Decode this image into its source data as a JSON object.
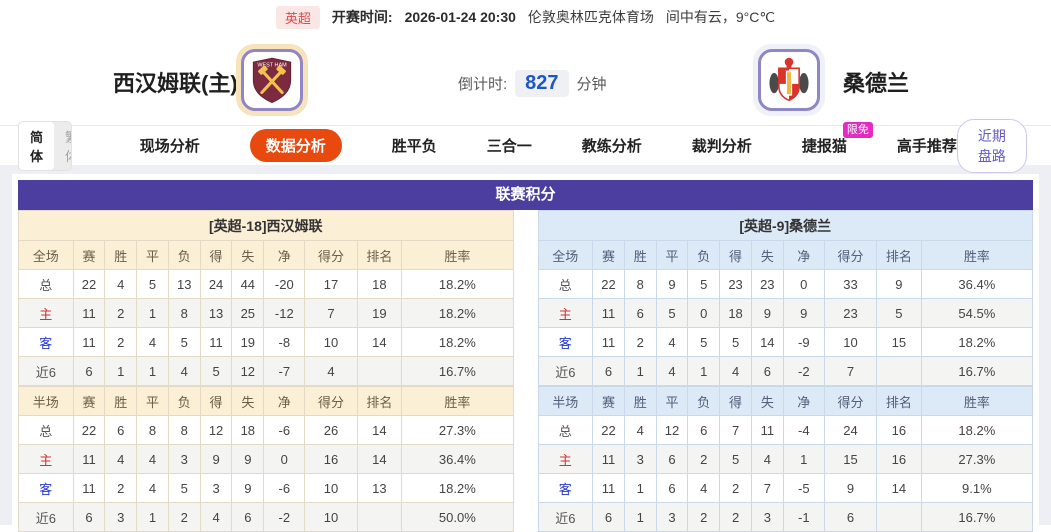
{
  "topbar": {
    "league_badge": "英超",
    "kickoff_label": "开赛时间:",
    "kickoff_time": "2026-01-24 20:30",
    "venue": "伦敦奥林匹克体育场",
    "weather": "间中有云，9°C℃"
  },
  "header": {
    "home_name": "西汉姆联(主)",
    "away_name": "桑德兰",
    "countdown_label": "倒计时:",
    "countdown_value": "827",
    "countdown_unit": "分钟"
  },
  "nav": {
    "lang_simplified": "简体",
    "lang_traditional": "繁体",
    "tabs": [
      {
        "label": "现场分析",
        "active": false
      },
      {
        "label": "数据分析",
        "active": true
      },
      {
        "label": "胜平负",
        "active": false
      },
      {
        "label": "三合一",
        "active": false
      },
      {
        "label": "教练分析",
        "active": false
      },
      {
        "label": "裁判分析",
        "active": false
      },
      {
        "label": "捷报猫",
        "active": false,
        "badge": "限免"
      },
      {
        "label": "高手推荐",
        "active": false
      }
    ],
    "right_button": "近期盘路"
  },
  "section": {
    "title": "联赛积分",
    "home": {
      "team_header": "[英超-18]西汉姆联",
      "full": {
        "columns": [
          "全场",
          "赛",
          "胜",
          "平",
          "负",
          "得",
          "失",
          "净",
          "得分",
          "排名",
          "胜率"
        ],
        "rows": [
          [
            "总",
            "22",
            "4",
            "5",
            "13",
            "24",
            "44",
            "-20",
            "17",
            "18",
            "18.2%"
          ],
          [
            "主",
            "11",
            "2",
            "1",
            "8",
            "13",
            "25",
            "-12",
            "7",
            "19",
            "18.2%"
          ],
          [
            "客",
            "11",
            "2",
            "4",
            "5",
            "11",
            "19",
            "-8",
            "10",
            "14",
            "18.2%"
          ],
          [
            "近6",
            "6",
            "1",
            "1",
            "4",
            "5",
            "12",
            "-7",
            "4",
            "",
            "16.7%"
          ]
        ]
      },
      "half": {
        "columns": [
          "半场",
          "赛",
          "胜",
          "平",
          "负",
          "得",
          "失",
          "净",
          "得分",
          "排名",
          "胜率"
        ],
        "rows": [
          [
            "总",
            "22",
            "6",
            "8",
            "8",
            "12",
            "18",
            "-6",
            "26",
            "14",
            "27.3%"
          ],
          [
            "主",
            "11",
            "4",
            "4",
            "3",
            "9",
            "9",
            "0",
            "16",
            "14",
            "36.4%"
          ],
          [
            "客",
            "11",
            "2",
            "4",
            "5",
            "3",
            "9",
            "-6",
            "10",
            "13",
            "18.2%"
          ],
          [
            "近6",
            "6",
            "3",
            "1",
            "2",
            "4",
            "6",
            "-2",
            "10",
            "",
            "50.0%"
          ]
        ]
      }
    },
    "away": {
      "team_header": "[英超-9]桑德兰",
      "full": {
        "columns": [
          "全场",
          "赛",
          "胜",
          "平",
          "负",
          "得",
          "失",
          "净",
          "得分",
          "排名",
          "胜率"
        ],
        "rows": [
          [
            "总",
            "22",
            "8",
            "9",
            "5",
            "23",
            "23",
            "0",
            "33",
            "9",
            "36.4%"
          ],
          [
            "主",
            "11",
            "6",
            "5",
            "0",
            "18",
            "9",
            "9",
            "23",
            "5",
            "54.5%"
          ],
          [
            "客",
            "11",
            "2",
            "4",
            "5",
            "5",
            "14",
            "-9",
            "10",
            "15",
            "18.2%"
          ],
          [
            "近6",
            "6",
            "1",
            "4",
            "1",
            "4",
            "6",
            "-2",
            "7",
            "",
            "16.7%"
          ]
        ]
      },
      "half": {
        "columns": [
          "半场",
          "赛",
          "胜",
          "平",
          "负",
          "得",
          "失",
          "净",
          "得分",
          "排名",
          "胜率"
        ],
        "rows": [
          [
            "总",
            "22",
            "4",
            "12",
            "6",
            "7",
            "11",
            "-4",
            "24",
            "16",
            "18.2%"
          ],
          [
            "主",
            "11",
            "3",
            "6",
            "2",
            "5",
            "4",
            "1",
            "15",
            "16",
            "27.3%"
          ],
          [
            "客",
            "11",
            "1",
            "6",
            "4",
            "2",
            "7",
            "-5",
            "9",
            "14",
            "9.1%"
          ],
          [
            "近6",
            "6",
            "1",
            "3",
            "2",
            "2",
            "3",
            "-1",
            "6",
            "",
            "16.7%"
          ]
        ]
      }
    }
  },
  "colors": {
    "accent_tab": "#e8490e",
    "section_header_purple": "#4b3e9e",
    "home_panel": "#fbf0d5",
    "away_panel": "#dce9f6",
    "countdown_blue": "#1d56c5",
    "badge_magenta": "#e32bc3",
    "link_purple": "#6459c8",
    "home_row_label_red": "#d03333",
    "away_row_label_blue": "#2536cc",
    "league_badge_red": "#e04848"
  }
}
